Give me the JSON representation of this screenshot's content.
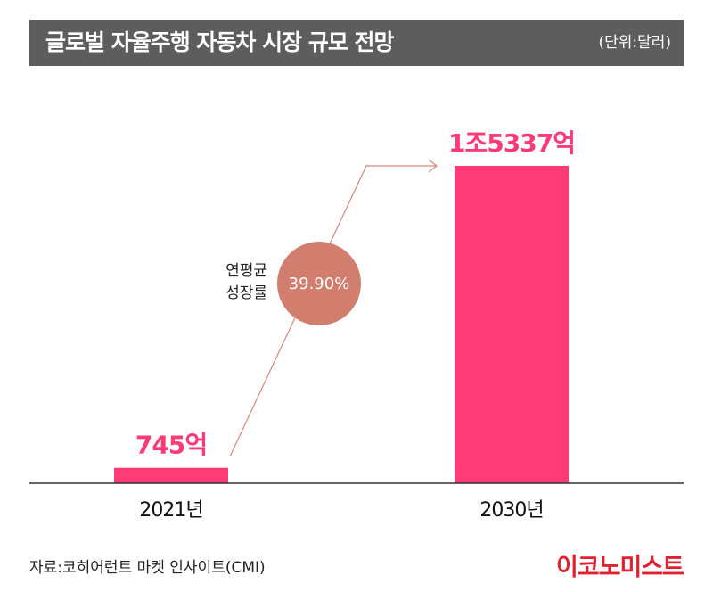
{
  "header": {
    "title": "글로벌 자율주행 자동차 시장 규모 전망",
    "unit": "(단위:달러)"
  },
  "chart_data": {
    "type": "bar",
    "categories": [
      "2021년",
      "2030년"
    ],
    "values": [
      74.5,
      1533.7
    ],
    "value_labels": [
      "745억",
      "1조5337억"
    ],
    "ylim": [
      0,
      1533.7
    ],
    "bar_color": "#ff3b77",
    "annotation": {
      "label_line1": "연평균",
      "label_line2": "성장률",
      "value": "39.90%",
      "badge_color": "#d27e6e"
    }
  },
  "footer": {
    "source": "자료:코히어런트 마켓 인사이트(CMI)",
    "logo": "이코노미스트"
  }
}
